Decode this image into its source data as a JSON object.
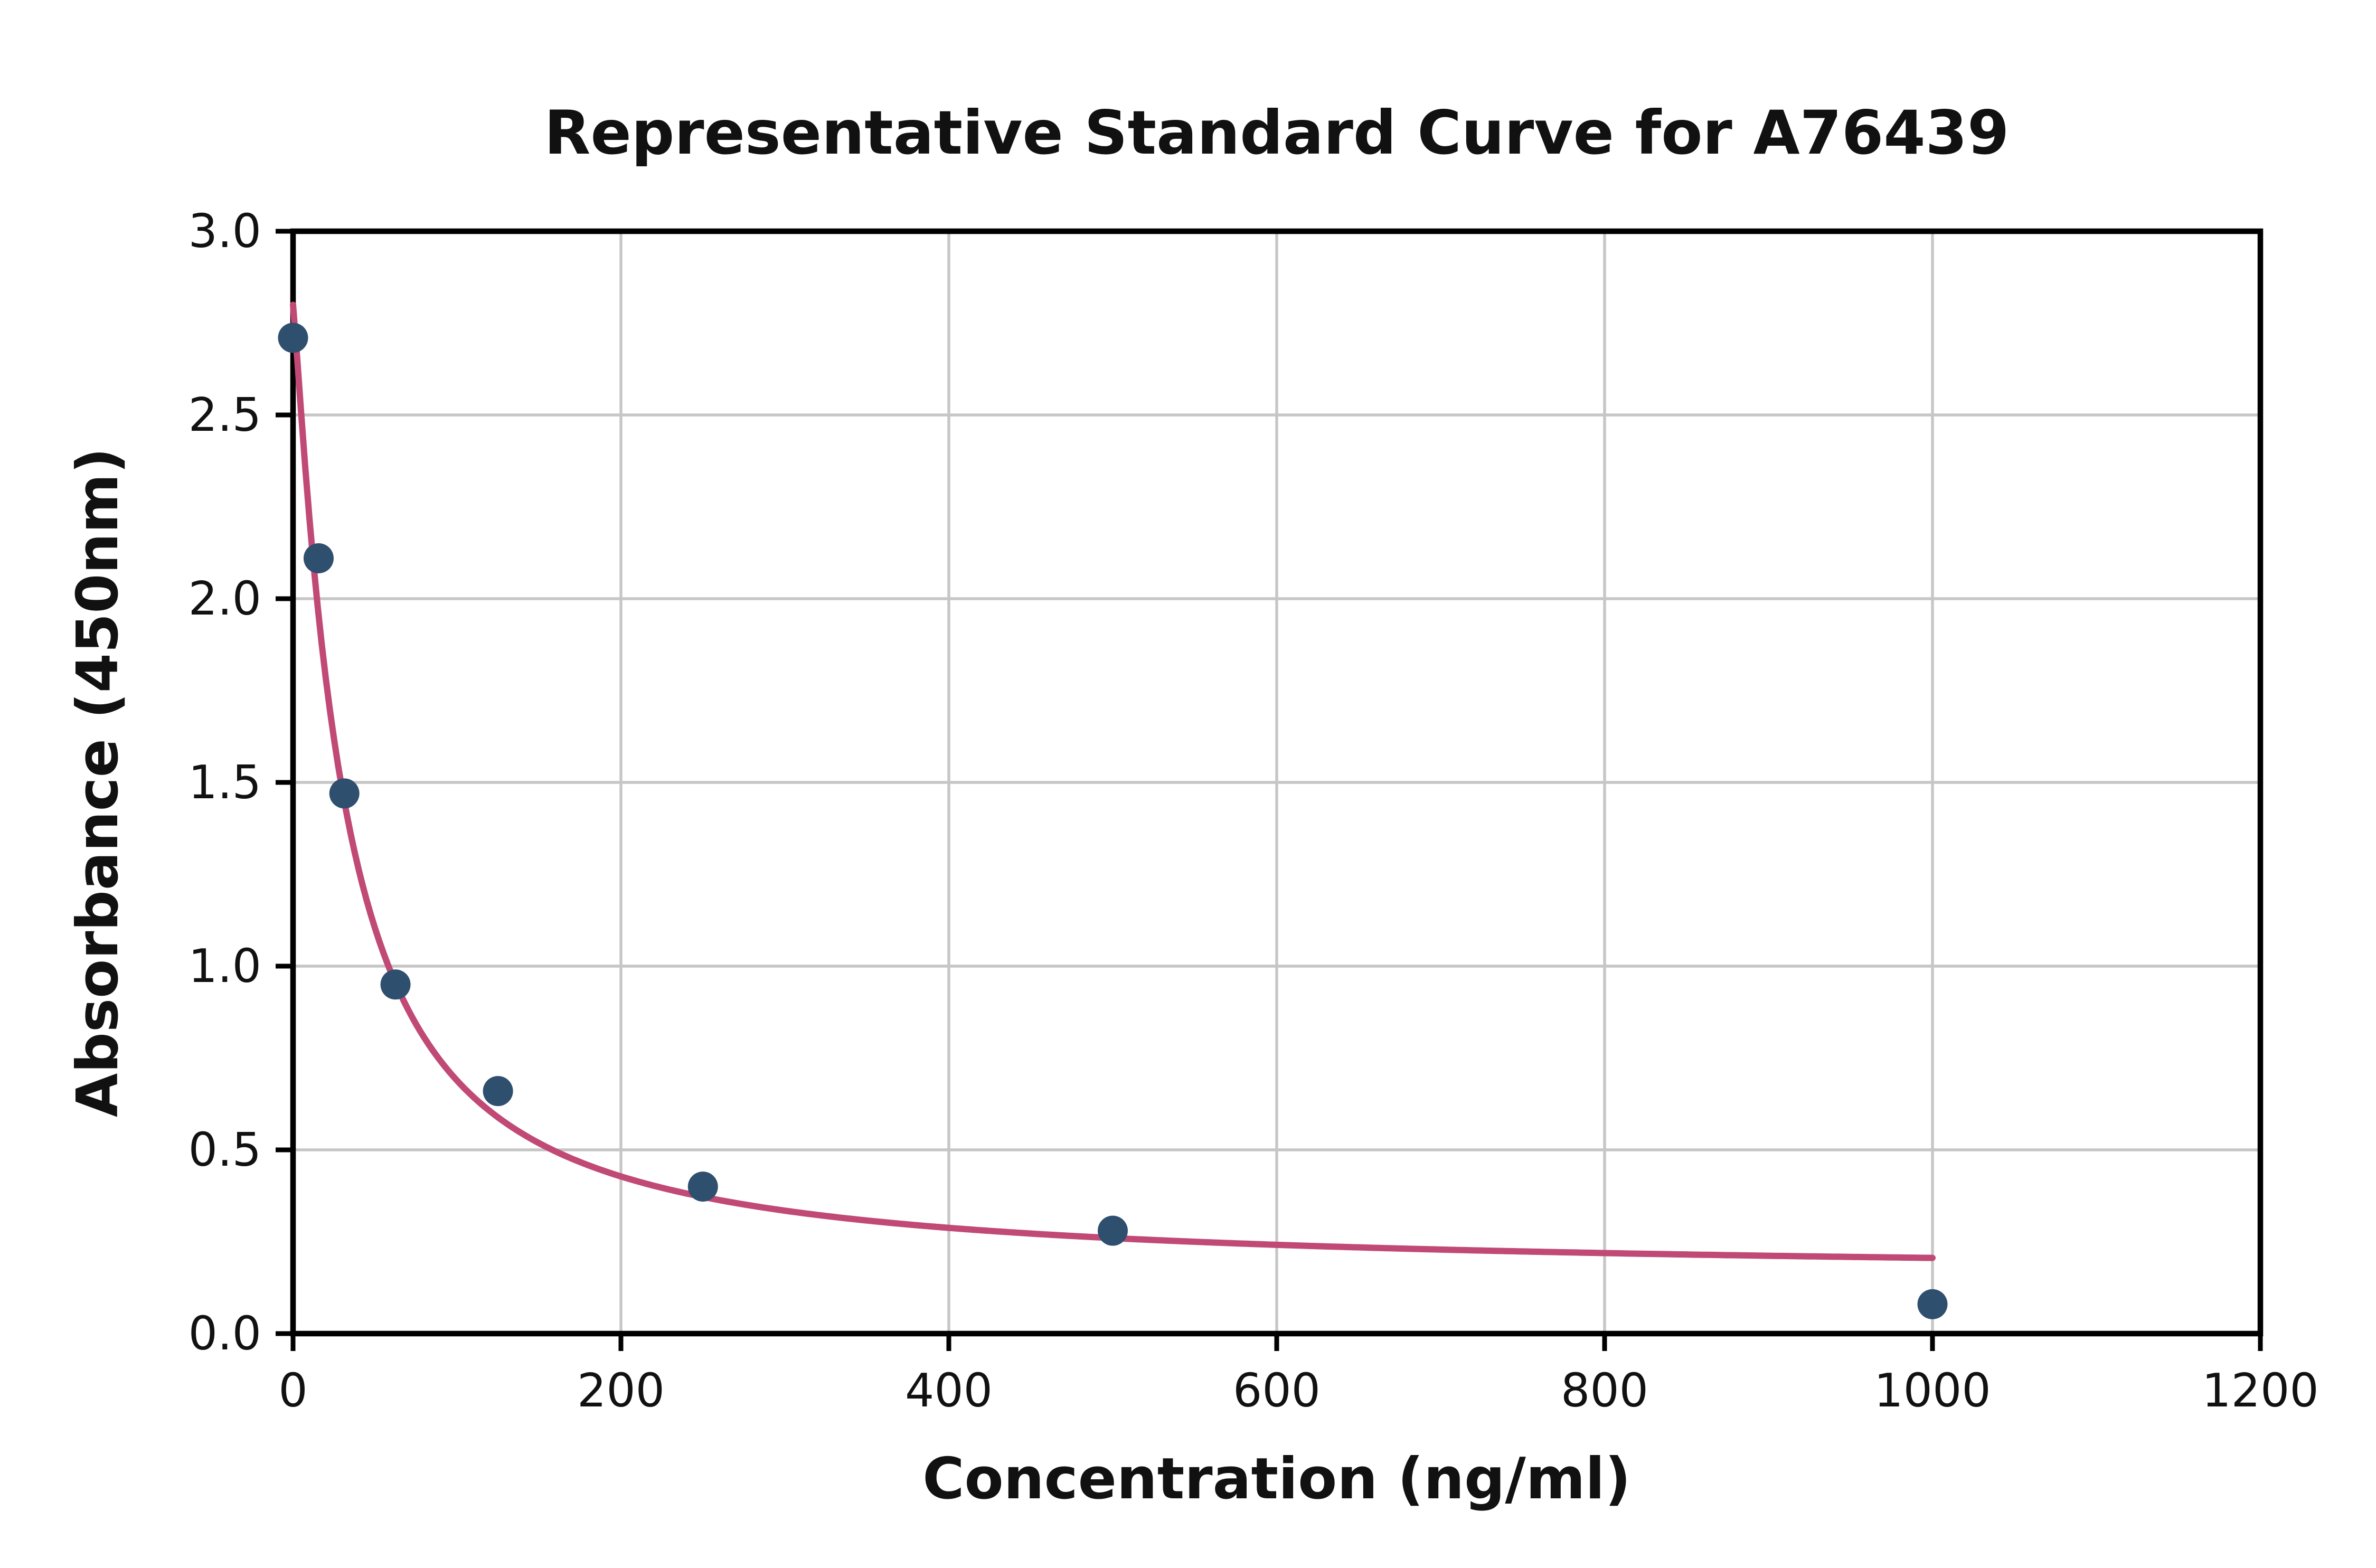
{
  "chart_data": {
    "type": "scatter",
    "title": "Representative Standard Curve for A76439",
    "xlabel": "Concentration (ng/ml)",
    "ylabel": "Absorbance (450nm)",
    "xlim": [
      0,
      1200
    ],
    "ylim": [
      0.0,
      3.0
    ],
    "grid": true,
    "legend": "none",
    "x_ticks": [
      0,
      200,
      400,
      600,
      800,
      1000,
      1200
    ],
    "x_tick_labels": [
      "0",
      "200",
      "400",
      "600",
      "800",
      "1000",
      "1200"
    ],
    "y_ticks": [
      0.0,
      0.5,
      1.0,
      1.5,
      2.0,
      2.5,
      3.0
    ],
    "y_tick_labels": [
      "0.0",
      "0.5",
      "1.0",
      "1.5",
      "2.0",
      "2.5",
      "3.0"
    ],
    "points": [
      {
        "x": 0,
        "y": 2.71
      },
      {
        "x": 15.6,
        "y": 2.11
      },
      {
        "x": 31.3,
        "y": 1.47
      },
      {
        "x": 62.5,
        "y": 0.95
      },
      {
        "x": 125,
        "y": 0.66
      },
      {
        "x": 250,
        "y": 0.4
      },
      {
        "x": 500,
        "y": 0.28
      },
      {
        "x": 1000,
        "y": 0.08
      }
    ],
    "fit_curve": {
      "model": "4PL",
      "A": 2.8,
      "B": 1.15,
      "C": 30,
      "D": 0.16,
      "x_start": 0,
      "x_end": 1000
    },
    "colors": {
      "point": "#2f4f6f",
      "curve": "#c04a75",
      "grid": "#c6c6c6",
      "axis": "#000000",
      "background": "#ffffff"
    }
  }
}
